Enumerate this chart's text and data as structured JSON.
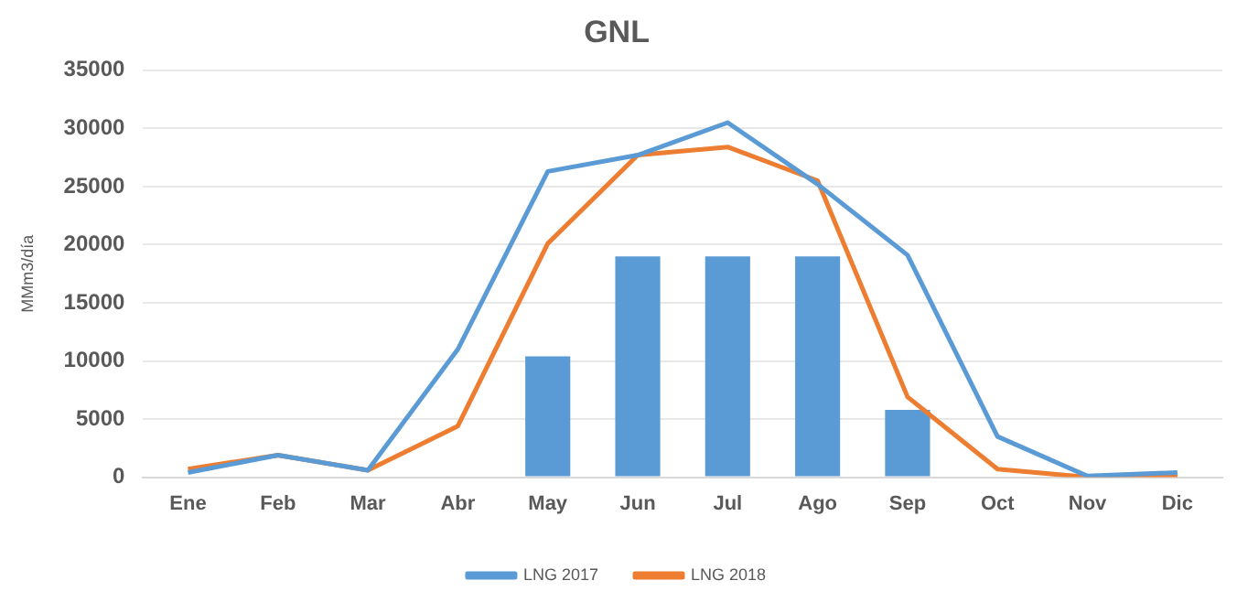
{
  "chart_data": {
    "type": "bar",
    "title": "GNL",
    "ylabel": "MMm3/día",
    "categories": [
      "Ene",
      "Feb",
      "Mar",
      "Abr",
      "May",
      "Jun",
      "Jul",
      "Ago",
      "Sep",
      "Oct",
      "Nov",
      "Dic"
    ],
    "series": [
      {
        "color": "#5b9bd5",
        "values": [
          null,
          null,
          null,
          null,
          10400,
          19000,
          19000,
          19000,
          5800,
          null,
          null,
          null
        ]
      },
      {
        "type": "line",
        "name": "LNG 2017",
        "color": "#5b9bd5",
        "values": [
          400,
          1900,
          600,
          11000,
          26300,
          27700,
          30500,
          25200,
          19100,
          3500,
          100,
          400
        ]
      },
      {
        "type": "line",
        "name": "LNG 2018",
        "color": "#ed7d31",
        "values": [
          700,
          1900,
          600,
          4400,
          20100,
          27700,
          28400,
          25500,
          6900,
          700,
          0,
          100
        ]
      }
    ],
    "ylim": [
      0,
      35000
    ],
    "yticks": [
      0,
      5000,
      10000,
      15000,
      20000,
      25000,
      30000,
      35000
    ],
    "grid": "y",
    "legend": "bottom",
    "marker": "none"
  }
}
